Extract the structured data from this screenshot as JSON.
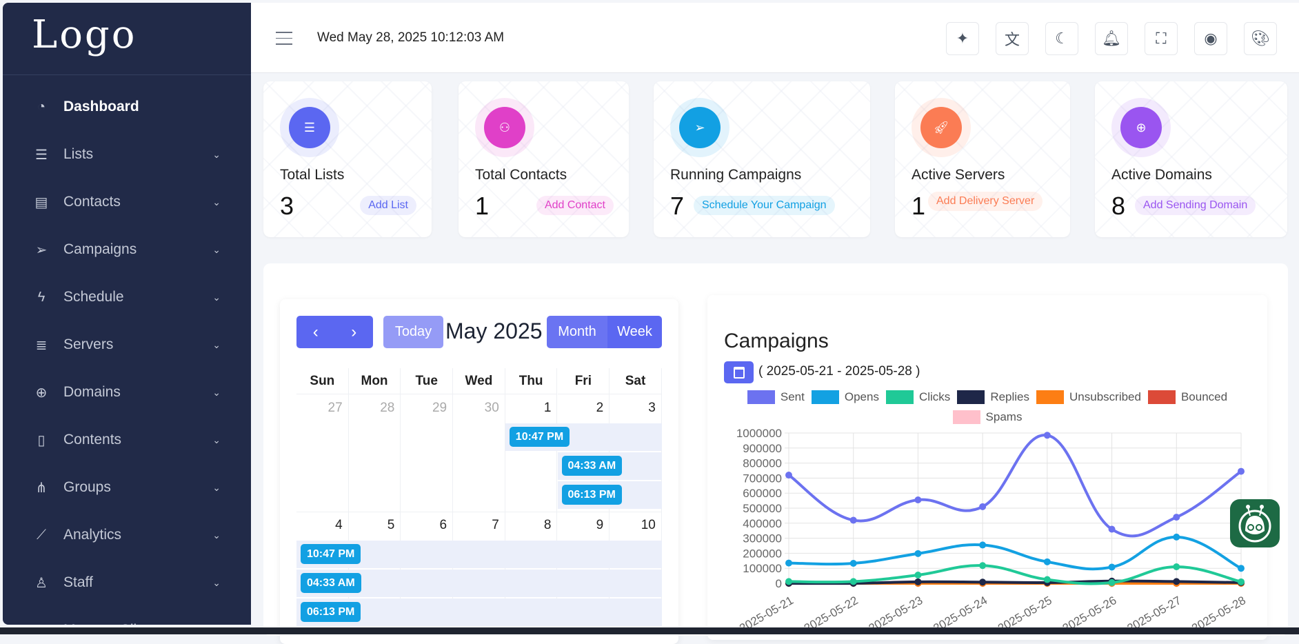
{
  "sidebar": {
    "logo": "Logo",
    "items": [
      {
        "label": "Dashboard",
        "icon": "gauge-icon"
      },
      {
        "label": "Lists",
        "icon": "list-icon"
      },
      {
        "label": "Contacts",
        "icon": "id-card-icon"
      },
      {
        "label": "Campaigns",
        "icon": "send-icon"
      },
      {
        "label": "Schedule",
        "icon": "bolt-icon"
      },
      {
        "label": "Servers",
        "icon": "database-icon"
      },
      {
        "label": "Domains",
        "icon": "globe-icon"
      },
      {
        "label": "Contents",
        "icon": "layout-icon"
      },
      {
        "label": "Groups",
        "icon": "sitemap-icon"
      },
      {
        "label": "Analytics",
        "icon": "chart-line-icon"
      },
      {
        "label": "Staff",
        "icon": "user-icon"
      },
      {
        "label": "Manage Clients",
        "icon": "users-icon"
      }
    ]
  },
  "header": {
    "datetime": "Wed May 28, 2025 10:12:03 AM",
    "buttons": [
      "sparkles-icon",
      "translate-icon",
      "moon-icon",
      "bell-icon",
      "fullscreen-icon",
      "user-circle-icon",
      "palette-icon"
    ]
  },
  "stats": [
    {
      "title": "Total Lists",
      "value": "3",
      "action": "Add List",
      "color": "#5b67f1"
    },
    {
      "title": "Total Contacts",
      "value": "1",
      "action": "Add Contact",
      "color": "#e040c8"
    },
    {
      "title": "Running Campaigns",
      "value": "7",
      "action": "Schedule Your Campaign",
      "color": "#12a0e3"
    },
    {
      "title": "Active Servers",
      "value": "1",
      "action": "Add Delivery Server",
      "color": "#fb7c54"
    },
    {
      "title": "Active Domains",
      "value": "8",
      "action": "Add Sending Domain",
      "color": "#9a55f0"
    }
  ],
  "calendar": {
    "title": "May 2025",
    "today": "Today",
    "month": "Month",
    "week": "Week",
    "days": [
      "Sun",
      "Mon",
      "Tue",
      "Wed",
      "Thu",
      "Fri",
      "Sat"
    ],
    "week1": [
      "27",
      "28",
      "29",
      "30",
      "1",
      "2",
      "3"
    ],
    "week2": [
      "4",
      "5",
      "6",
      "7",
      "8",
      "9",
      "10"
    ],
    "events": [
      "10:47 PM",
      "04:33 AM",
      "06:13 PM",
      "10:47 PM",
      "04:33 AM",
      "06:13 PM"
    ]
  },
  "campaigns": {
    "title": "Campaigns",
    "range": "( 2025-05-21 - 2025-05-28 )"
  },
  "chart_data": {
    "type": "line",
    "x": [
      "2025-05-21",
      "2025-05-22",
      "2025-05-23",
      "2025-05-24",
      "2025-05-25",
      "2025-05-26",
      "2025-05-27",
      "2025-05-28"
    ],
    "ylim": [
      0,
      1000000
    ],
    "yticks": [
      "1000000",
      "900000",
      "800000",
      "700000",
      "600000",
      "500000",
      "400000",
      "300000",
      "200000",
      "100000",
      "0"
    ],
    "legend": "top",
    "series": [
      {
        "name": "Sent",
        "color": "#6c72f0",
        "values": [
          720000,
          420000,
          555000,
          510000,
          985000,
          360000,
          440000,
          745000
        ]
      },
      {
        "name": "Opens",
        "color": "#13a1e2",
        "values": [
          135000,
          133000,
          198000,
          255000,
          143000,
          108000,
          308000,
          100000
        ]
      },
      {
        "name": "Clicks",
        "color": "#20c997",
        "values": [
          12000,
          12000,
          55000,
          118000,
          25000,
          5000,
          110000,
          10000
        ]
      },
      {
        "name": "Replies",
        "color": "#1e2748",
        "values": [
          0,
          0,
          10000,
          8000,
          5000,
          15000,
          12000,
          5000
        ]
      },
      {
        "name": "Unsubscribed",
        "color": "#fd7e14",
        "values": [
          0,
          0,
          0,
          0,
          0,
          0,
          0,
          0
        ]
      },
      {
        "name": "Bounced",
        "color": "#dc4a38",
        "values": [
          0,
          0,
          0,
          0,
          0,
          0,
          0,
          0
        ]
      },
      {
        "name": "Spams",
        "color": "#ffc0cb",
        "values": [
          0,
          0,
          0,
          0,
          0,
          0,
          0,
          0
        ]
      }
    ]
  }
}
